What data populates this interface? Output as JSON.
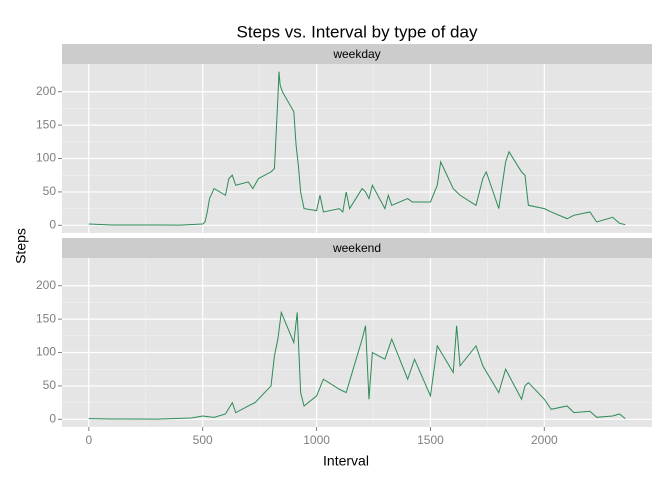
{
  "title": "Steps vs. Interval by type of day",
  "x_label": "Interval",
  "y_label": "Steps",
  "chart_data": [
    {
      "type": "line",
      "facet_label": "weekday",
      "color": "#2e8b57",
      "grid": true,
      "xlim": [
        -117.75,
        2472.75
      ],
      "xticks": [
        0,
        500,
        1000,
        1500,
        2000
      ],
      "ylim": [
        -11.5,
        241.5
      ],
      "yticks": [
        0,
        50,
        100,
        150,
        200
      ],
      "x": [
        0,
        100,
        200,
        300,
        400,
        500,
        510,
        520,
        530,
        550,
        600,
        615,
        630,
        645,
        700,
        720,
        745,
        800,
        815,
        830,
        835,
        840,
        850,
        900,
        910,
        920,
        930,
        945,
        1000,
        1015,
        1030,
        1100,
        1115,
        1130,
        1145,
        1200,
        1215,
        1230,
        1245,
        1300,
        1315,
        1330,
        1400,
        1420,
        1500,
        1530,
        1545,
        1600,
        1630,
        1700,
        1730,
        1745,
        1800,
        1815,
        1830,
        1845,
        1900,
        1915,
        1930,
        2000,
        2030,
        2100,
        2130,
        2200,
        2230,
        2300,
        2330,
        2355
      ],
      "values": [
        2,
        0.5,
        0.5,
        0.5,
        0.3,
        2,
        5,
        20,
        40,
        55,
        45,
        70,
        75,
        60,
        65,
        55,
        70,
        80,
        85,
        190,
        230,
        210,
        200,
        170,
        120,
        90,
        50,
        25,
        22,
        45,
        20,
        25,
        20,
        50,
        25,
        55,
        50,
        40,
        60,
        25,
        45,
        30,
        40,
        35,
        35,
        60,
        95,
        55,
        45,
        30,
        70,
        80,
        25,
        60,
        95,
        110,
        80,
        75,
        30,
        25,
        20,
        10,
        15,
        20,
        5,
        12,
        3,
        1
      ]
    },
    {
      "type": "line",
      "facet_label": "weekend",
      "color": "#2e8b57",
      "grid": true,
      "xlim": [
        -117.75,
        2472.75
      ],
      "xticks": [
        0,
        500,
        1000,
        1500,
        2000
      ],
      "ylim": [
        -11.5,
        241.5
      ],
      "yticks": [
        0,
        50,
        100,
        150,
        200
      ],
      "x": [
        0,
        100,
        300,
        450,
        500,
        550,
        600,
        630,
        645,
        700,
        730,
        800,
        815,
        830,
        845,
        900,
        915,
        930,
        945,
        1000,
        1030,
        1100,
        1130,
        1200,
        1215,
        1230,
        1245,
        1300,
        1330,
        1400,
        1430,
        1500,
        1530,
        1600,
        1615,
        1630,
        1700,
        1730,
        1800,
        1830,
        1900,
        1915,
        1930,
        2000,
        2030,
        2100,
        2130,
        2200,
        2230,
        2300,
        2330,
        2355
      ],
      "values": [
        1,
        0.5,
        0.3,
        2,
        5,
        3,
        8,
        25,
        10,
        20,
        25,
        50,
        95,
        120,
        160,
        115,
        160,
        40,
        20,
        35,
        60,
        45,
        40,
        120,
        140,
        30,
        100,
        90,
        120,
        60,
        90,
        35,
        110,
        70,
        140,
        80,
        110,
        80,
        40,
        75,
        30,
        50,
        55,
        30,
        15,
        20,
        10,
        12,
        3,
        5,
        8,
        1
      ]
    }
  ]
}
